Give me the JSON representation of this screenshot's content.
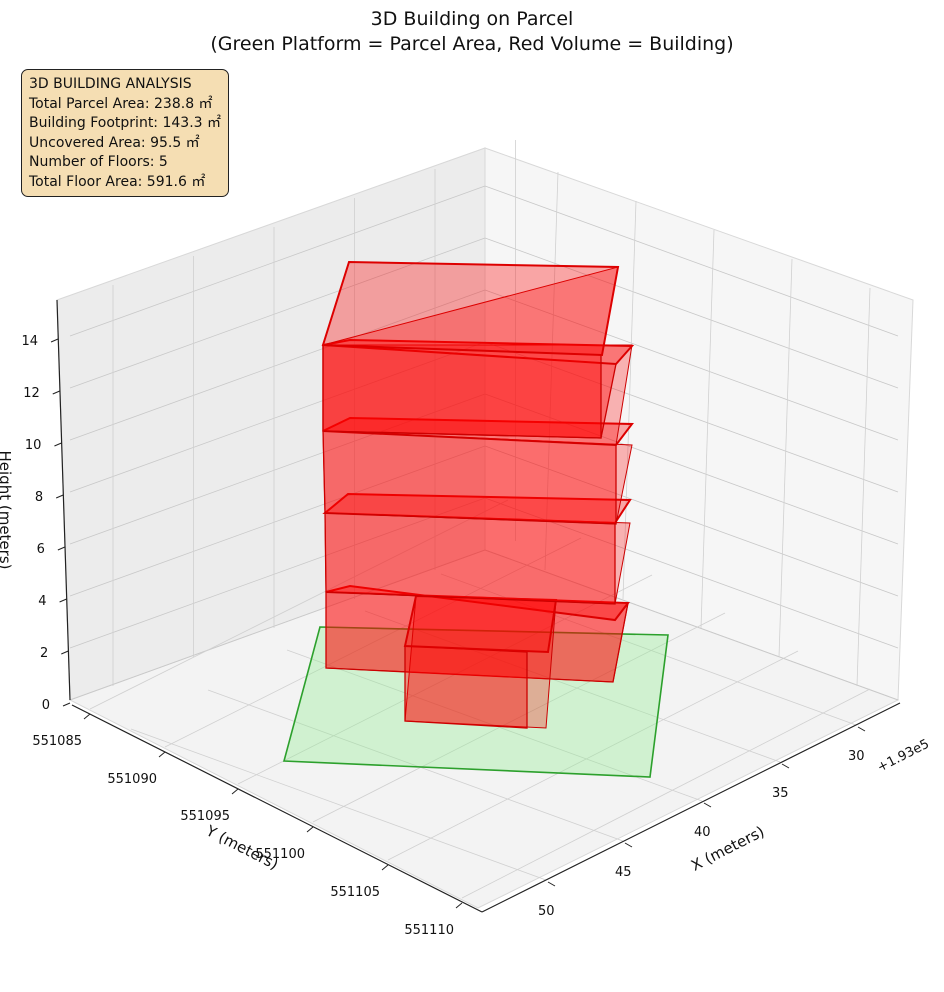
{
  "chart_data": {
    "type": "3d-polygons",
    "title": [
      "3D Building on Parcel",
      "(Green Platform = Parcel Area, Red Volume = Building)"
    ],
    "xlabel": "X (meters)",
    "ylabel": "Y (meters)",
    "zlabel": "Height (meters)",
    "x_offset_label": "+1.93e5",
    "x_ticks": [
      "30",
      "35",
      "40",
      "45",
      "50"
    ],
    "y_ticks": [
      "551085",
      "551090",
      "551095",
      "551100",
      "551105",
      "551110"
    ],
    "z_ticks": [
      "0",
      "2",
      "4",
      "6",
      "8",
      "10",
      "12",
      "14"
    ],
    "colors": {
      "building": "#ff0000",
      "building_edge": "#cc0000",
      "parcel": "#90ee90",
      "parcel_edge": "#2ca02c",
      "info_box": "#f5deb3"
    },
    "parcel_label": "Green Platform = Parcel Area",
    "building_label": "Red Volume = Building"
  },
  "info": {
    "lines": [
      "3D BUILDING ANALYSIS",
      "Total Parcel Area: 238.8 ㎡",
      "Building Footprint: 143.3 ㎡",
      "Uncovered Area: 95.5 ㎡",
      "Number of Floors: 5",
      "Total Floor Area: 591.6 ㎡"
    ]
  }
}
